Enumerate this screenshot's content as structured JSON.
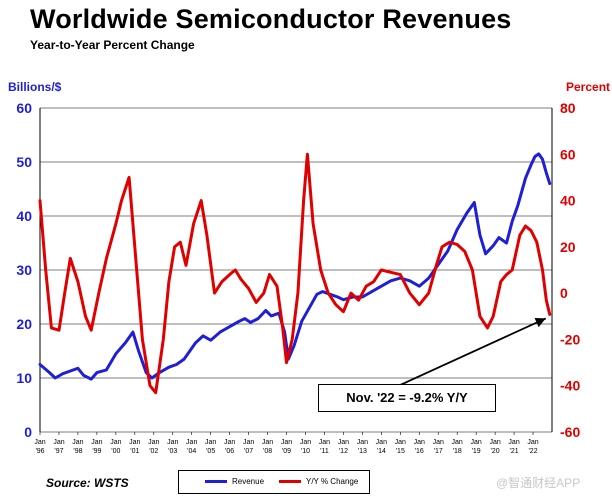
{
  "header": {
    "title": "Worldwide Semiconductor Revenues",
    "subtitle": "Year-to-Year Percent Change",
    "left_axis_unit": "Billions/$",
    "right_axis_unit": "Percent"
  },
  "footer": {
    "source": "Source: WSTS",
    "watermark": "@智通财经APP"
  },
  "annotation": {
    "text": "Nov. '22 = -9.2% Y/Y"
  },
  "legend": {
    "items": [
      {
        "label": "Revenue",
        "color": "#1f1fd6"
      },
      {
        "label": "Y/Y % Change",
        "color": "#e00000"
      }
    ]
  },
  "chart_data": {
    "type": "line",
    "title": "Worldwide Semiconductor Revenues",
    "subtitle": "Year-to-Year Percent Change",
    "x_range": [
      1996,
      2023
    ],
    "x_ticks": [
      {
        "year": 1996,
        "label": "'96"
      },
      {
        "year": 1997,
        "label": "'97"
      },
      {
        "year": 1998,
        "label": "'98"
      },
      {
        "year": 1999,
        "label": "'99"
      },
      {
        "year": 2000,
        "label": "'00"
      },
      {
        "year": 2001,
        "label": "'01"
      },
      {
        "year": 2002,
        "label": "'02"
      },
      {
        "year": 2003,
        "label": "'03"
      },
      {
        "year": 2004,
        "label": "'04"
      },
      {
        "year": 2005,
        "label": "'05"
      },
      {
        "year": 2006,
        "label": "'06"
      },
      {
        "year": 2007,
        "label": "'07"
      },
      {
        "year": 2008,
        "label": "'08"
      },
      {
        "year": 2009,
        "label": "'09"
      },
      {
        "year": 2010,
        "label": "'10"
      },
      {
        "year": 2011,
        "label": "'11"
      },
      {
        "year": 2012,
        "label": "'12"
      },
      {
        "year": 2013,
        "label": "'13"
      },
      {
        "year": 2014,
        "label": "'14"
      },
      {
        "year": 2015,
        "label": "'15"
      },
      {
        "year": 2016,
        "label": "'16"
      },
      {
        "year": 2017,
        "label": "'17"
      },
      {
        "year": 2018,
        "label": "'18"
      },
      {
        "year": 2019,
        "label": "'19"
      },
      {
        "year": 2020,
        "label": "'20"
      },
      {
        "year": 2021,
        "label": "'21"
      },
      {
        "year": 2022,
        "label": "'22"
      }
    ],
    "x_tick_prefix": "Jan",
    "left_axis": {
      "label": "Billions/$",
      "ylim": [
        0,
        60
      ],
      "ticks": [
        0,
        10,
        20,
        30,
        40,
        50,
        60
      ]
    },
    "right_axis": {
      "label": "Percent",
      "ylim": [
        -60,
        80
      ],
      "ticks": [
        -60,
        -40,
        -20,
        0,
        20,
        40,
        60,
        80
      ]
    },
    "grid": "horizontal",
    "legend_position": "bottom-center",
    "series": [
      {
        "name": "Revenue",
        "axis": "left",
        "color": "#1f1fd6",
        "points": [
          [
            1996.0,
            12.5
          ],
          [
            1996.5,
            11.0
          ],
          [
            1996.8,
            10.0
          ],
          [
            1997.2,
            10.8
          ],
          [
            1997.6,
            11.3
          ],
          [
            1998.0,
            11.8
          ],
          [
            1998.3,
            10.5
          ],
          [
            1998.7,
            9.8
          ],
          [
            1999.0,
            11.0
          ],
          [
            1999.5,
            11.5
          ],
          [
            2000.0,
            14.5
          ],
          [
            2000.5,
            16.5
          ],
          [
            2000.9,
            18.5
          ],
          [
            2001.2,
            15.0
          ],
          [
            2001.6,
            11.0
          ],
          [
            2001.9,
            10.0
          ],
          [
            2002.3,
            11.0
          ],
          [
            2002.8,
            12.0
          ],
          [
            2003.2,
            12.5
          ],
          [
            2003.6,
            13.5
          ],
          [
            2003.9,
            15.0
          ],
          [
            2004.2,
            16.5
          ],
          [
            2004.6,
            17.8
          ],
          [
            2005.0,
            17.0
          ],
          [
            2005.5,
            18.5
          ],
          [
            2006.0,
            19.5
          ],
          [
            2006.5,
            20.5
          ],
          [
            2006.8,
            21.0
          ],
          [
            2007.1,
            20.3
          ],
          [
            2007.5,
            21.0
          ],
          [
            2007.9,
            22.5
          ],
          [
            2008.2,
            21.5
          ],
          [
            2008.6,
            22.0
          ],
          [
            2008.9,
            18.5
          ],
          [
            2009.1,
            13.5
          ],
          [
            2009.4,
            16.0
          ],
          [
            2009.8,
            20.5
          ],
          [
            2010.2,
            23.0
          ],
          [
            2010.6,
            25.5
          ],
          [
            2010.9,
            26.0
          ],
          [
            2011.3,
            25.5
          ],
          [
            2011.7,
            25.0
          ],
          [
            2012.0,
            24.5
          ],
          [
            2012.5,
            25.0
          ],
          [
            2013.0,
            25.0
          ],
          [
            2013.5,
            26.0
          ],
          [
            2014.0,
            27.0
          ],
          [
            2014.5,
            28.0
          ],
          [
            2015.0,
            28.5
          ],
          [
            2015.5,
            28.0
          ],
          [
            2016.0,
            27.0
          ],
          [
            2016.5,
            28.5
          ],
          [
            2017.0,
            31.0
          ],
          [
            2017.5,
            33.5
          ],
          [
            2018.0,
            37.5
          ],
          [
            2018.5,
            40.5
          ],
          [
            2018.9,
            42.5
          ],
          [
            2019.2,
            36.5
          ],
          [
            2019.5,
            33.0
          ],
          [
            2019.9,
            34.5
          ],
          [
            2020.2,
            36.0
          ],
          [
            2020.6,
            35.0
          ],
          [
            2020.9,
            39.0
          ],
          [
            2021.2,
            42.0
          ],
          [
            2021.6,
            47.0
          ],
          [
            2021.9,
            49.5
          ],
          [
            2022.1,
            51.0
          ],
          [
            2022.3,
            51.5
          ],
          [
            2022.5,
            50.5
          ],
          [
            2022.7,
            48.0
          ],
          [
            2022.88,
            46.0
          ]
        ]
      },
      {
        "name": "Y/Y % Change",
        "axis": "right",
        "color": "#e00000",
        "points": [
          [
            1996.0,
            40.0
          ],
          [
            1996.3,
            10.0
          ],
          [
            1996.6,
            -15.0
          ],
          [
            1997.0,
            -16.0
          ],
          [
            1997.3,
            0.0
          ],
          [
            1997.6,
            15.0
          ],
          [
            1998.0,
            5.0
          ],
          [
            1998.4,
            -10.0
          ],
          [
            1998.7,
            -16.0
          ],
          [
            1999.1,
            0.0
          ],
          [
            1999.5,
            15.0
          ],
          [
            2000.0,
            30.0
          ],
          [
            2000.3,
            40.0
          ],
          [
            2000.7,
            50.0
          ],
          [
            2001.0,
            20.0
          ],
          [
            2001.4,
            -20.0
          ],
          [
            2001.8,
            -40.0
          ],
          [
            2002.1,
            -43.0
          ],
          [
            2002.5,
            -20.0
          ],
          [
            2002.8,
            5.0
          ],
          [
            2003.1,
            20.0
          ],
          [
            2003.4,
            22.0
          ],
          [
            2003.7,
            12.0
          ],
          [
            2004.1,
            30.0
          ],
          [
            2004.5,
            40.0
          ],
          [
            2004.8,
            25.0
          ],
          [
            2005.2,
            0.0
          ],
          [
            2005.6,
            5.0
          ],
          [
            2006.0,
            8.0
          ],
          [
            2006.3,
            10.0
          ],
          [
            2006.6,
            6.0
          ],
          [
            2007.0,
            2.0
          ],
          [
            2007.4,
            -4.0
          ],
          [
            2007.8,
            0.0
          ],
          [
            2008.1,
            8.0
          ],
          [
            2008.5,
            3.0
          ],
          [
            2008.8,
            -15.0
          ],
          [
            2009.0,
            -30.0
          ],
          [
            2009.3,
            -20.0
          ],
          [
            2009.6,
            0.0
          ],
          [
            2009.9,
            40.0
          ],
          [
            2010.1,
            60.0
          ],
          [
            2010.4,
            30.0
          ],
          [
            2010.8,
            10.0
          ],
          [
            2011.2,
            0.0
          ],
          [
            2011.6,
            -5.0
          ],
          [
            2012.0,
            -8.0
          ],
          [
            2012.4,
            0.0
          ],
          [
            2012.8,
            -3.0
          ],
          [
            2013.2,
            3.0
          ],
          [
            2013.6,
            5.0
          ],
          [
            2014.0,
            10.0
          ],
          [
            2014.5,
            9.0
          ],
          [
            2015.0,
            8.0
          ],
          [
            2015.5,
            0.0
          ],
          [
            2016.0,
            -5.0
          ],
          [
            2016.5,
            0.0
          ],
          [
            2016.9,
            12.0
          ],
          [
            2017.2,
            20.0
          ],
          [
            2017.6,
            22.0
          ],
          [
            2018.0,
            21.0
          ],
          [
            2018.4,
            18.0
          ],
          [
            2018.8,
            10.0
          ],
          [
            2019.2,
            -10.0
          ],
          [
            2019.6,
            -15.0
          ],
          [
            2019.9,
            -10.0
          ],
          [
            2020.3,
            5.0
          ],
          [
            2020.6,
            8.0
          ],
          [
            2020.9,
            10.0
          ],
          [
            2021.3,
            25.0
          ],
          [
            2021.6,
            29.0
          ],
          [
            2021.9,
            27.0
          ],
          [
            2022.2,
            22.0
          ],
          [
            2022.5,
            10.0
          ],
          [
            2022.7,
            -3.0
          ],
          [
            2022.88,
            -9.2
          ]
        ]
      }
    ]
  }
}
